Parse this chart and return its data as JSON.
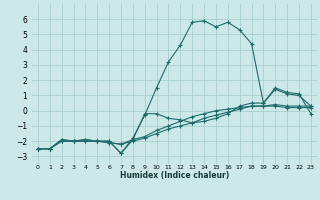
{
  "xlabel": "Humidex (Indice chaleur)",
  "background_color": "#cce8e8",
  "grid_color": "#aacfcf",
  "line_color": "#1e6b6b",
  "x_values": [
    0,
    1,
    2,
    3,
    4,
    5,
    6,
    7,
    8,
    9,
    10,
    11,
    12,
    13,
    14,
    15,
    16,
    17,
    18,
    19,
    20,
    21,
    22,
    23
  ],
  "series1": [
    -2.5,
    -2.5,
    -2.0,
    -2.0,
    -2.0,
    -2.0,
    -2.0,
    -2.8,
    -1.8,
    -0.3,
    1.5,
    3.2,
    4.3,
    5.8,
    5.9,
    5.5,
    5.8,
    5.3,
    4.4,
    0.5,
    1.5,
    1.2,
    1.1,
    -0.2
  ],
  "series2": [
    -2.5,
    -2.5,
    -2.0,
    -2.0,
    -2.0,
    -2.0,
    -2.0,
    -2.8,
    -1.9,
    -0.2,
    -0.2,
    -0.5,
    -0.6,
    -0.8,
    -0.7,
    -0.5,
    -0.2,
    0.3,
    0.5,
    0.5,
    1.4,
    1.1,
    1.0,
    0.3
  ],
  "series3": [
    -2.5,
    -2.5,
    -1.9,
    -2.0,
    -1.9,
    -2.0,
    -2.1,
    -2.2,
    -2.0,
    -1.8,
    -1.5,
    -1.2,
    -1.0,
    -0.8,
    -0.5,
    -0.3,
    -0.1,
    0.1,
    0.3,
    0.3,
    0.3,
    0.2,
    0.2,
    0.2
  ],
  "series4": [
    -2.5,
    -2.5,
    -1.9,
    -2.0,
    -1.9,
    -2.0,
    -2.1,
    -2.2,
    -1.9,
    -1.7,
    -1.3,
    -1.0,
    -0.7,
    -0.4,
    -0.2,
    0.0,
    0.1,
    0.2,
    0.3,
    0.3,
    0.4,
    0.3,
    0.3,
    0.3
  ],
  "ylim": [
    -3.5,
    7
  ],
  "yticks": [
    -3,
    -2,
    -1,
    0,
    1,
    2,
    3,
    4,
    5,
    6
  ],
  "xlim": [
    -0.5,
    23.5
  ],
  "xtick_labels": [
    "0",
    "1",
    "2",
    "3",
    "4",
    "5",
    "6",
    "7",
    "8",
    "9",
    "10",
    "11",
    "12",
    "13",
    "14",
    "15",
    "16",
    "17",
    "18",
    "19",
    "20",
    "21",
    "22",
    "23"
  ]
}
